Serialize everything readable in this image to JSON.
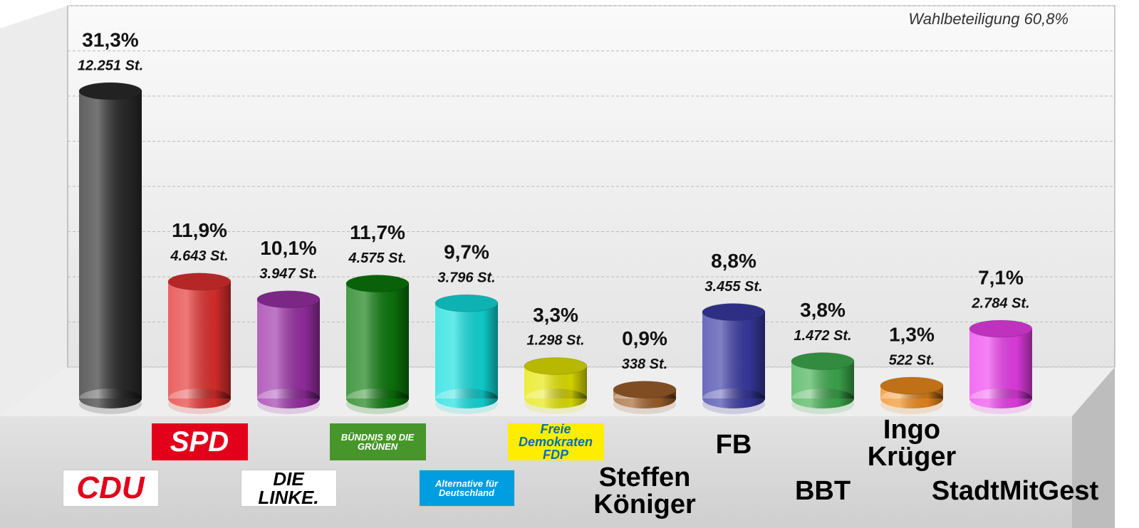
{
  "chart_data": {
    "type": "bar",
    "annotation": "Wahlbeteiligung 60,8%",
    "categories": [
      "CDU",
      "SPD",
      "DIE LINKE.",
      "BÜNDNIS 90 DIE GRÜNEN",
      "Alternative für Deutschland",
      "Freie Demokraten FDP",
      "Steffen Königer",
      "FB",
      "BBT",
      "Ingo Krüger",
      "StadtMitGest"
    ],
    "values": [
      31.3,
      11.9,
      10.1,
      11.7,
      9.7,
      3.3,
      0.9,
      8.8,
      3.8,
      1.3,
      7.1
    ],
    "value_labels": [
      "31,3%",
      "11,9%",
      "10,1%",
      "11,7%",
      "9,7%",
      "3,3%",
      "0,9%",
      "8,8%",
      "3,8%",
      "1,3%",
      "7,1%"
    ],
    "vote_labels": [
      "12.251 St.",
      "4.643 St.",
      "3.947 St.",
      "4.575 St.",
      "3.796 St.",
      "1.298 St.",
      "338 St.",
      "3.455 St.",
      "1.472 St.",
      "522 St.",
      "2.784 St."
    ],
    "colors": [
      "#2b2b2b",
      "#e3302f",
      "#9b2fa8",
      "#0b7a0b",
      "#12dede",
      "#e6e600",
      "#a0602a",
      "#3a3aa6",
      "#3fae4f",
      "#f08c1c",
      "#ee3fee"
    ],
    "ylim": [
      0,
      40
    ],
    "yticks": [
      0,
      5,
      10,
      15,
      20,
      25,
      30,
      35,
      40
    ],
    "grid": true
  }
}
